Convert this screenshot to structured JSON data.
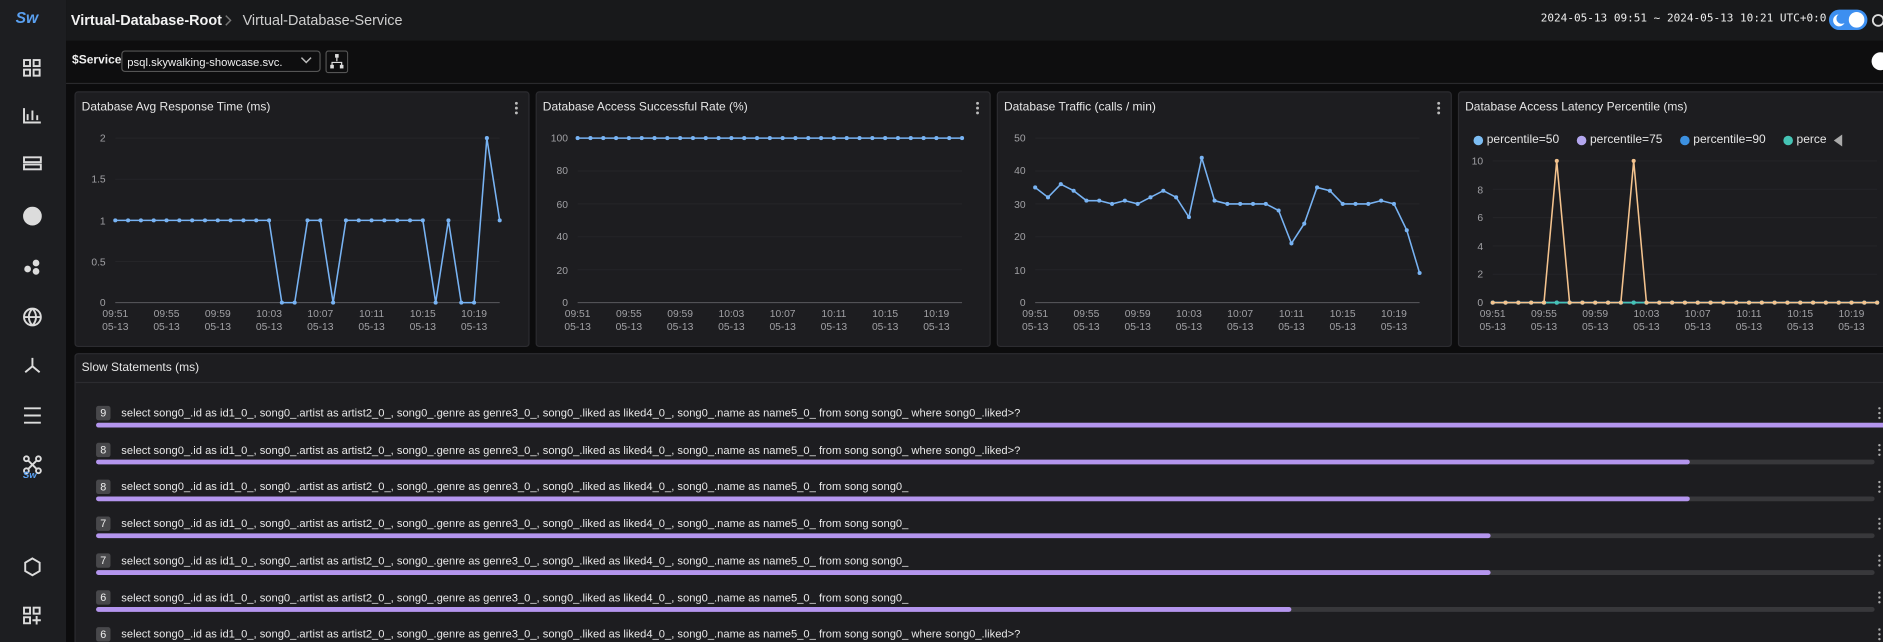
{
  "header": {
    "logo": "Sw",
    "breadcrumb": [
      "Virtual-Database-Root",
      "Virtual-Database-Service"
    ],
    "time_range": "2024-05-13 09:51 ~ 2024-05-13 10:21 UTC+0:0"
  },
  "toolbar": {
    "variable": "$Service",
    "selected": "psql.skywalking-showcase.svc."
  },
  "chart_data": [
    {
      "type": "line",
      "title": "Database Avg Response Time (ms)",
      "color": "#78b3f3",
      "grid": true,
      "categories": [
        "09:51\n05-13",
        null,
        null,
        null,
        "09:55\n05-13",
        null,
        null,
        null,
        "09:59\n05-13",
        null,
        null,
        null,
        "10:03\n05-13",
        null,
        null,
        null,
        "10:07\n05-13",
        null,
        null,
        null,
        "10:11\n05-13",
        null,
        null,
        null,
        "10:15\n05-13",
        null,
        null,
        null,
        "10:19\n05-13",
        null,
        null
      ],
      "values": [
        1,
        1,
        1,
        1,
        1,
        1,
        1,
        1,
        1,
        1,
        1,
        1,
        1,
        0,
        0,
        1,
        1,
        0,
        1,
        1,
        1,
        1,
        1,
        1,
        1,
        0,
        1,
        0,
        0,
        2,
        1
      ],
      "ylim": [
        0,
        2
      ],
      "yticks": [
        0,
        0.5,
        1,
        1.5,
        2
      ]
    },
    {
      "type": "line",
      "title": "Database Access Successful Rate (%)",
      "color": "#78b3f3",
      "grid": true,
      "categories": [
        "09:51\n05-13",
        null,
        null,
        null,
        "09:55\n05-13",
        null,
        null,
        null,
        "09:59\n05-13",
        null,
        null,
        null,
        "10:03\n05-13",
        null,
        null,
        null,
        "10:07\n05-13",
        null,
        null,
        null,
        "10:11\n05-13",
        null,
        null,
        null,
        "10:15\n05-13",
        null,
        null,
        null,
        "10:19\n05-13",
        null,
        null
      ],
      "values": [
        100,
        100,
        100,
        100,
        100,
        100,
        100,
        100,
        100,
        100,
        100,
        100,
        100,
        100,
        100,
        100,
        100,
        100,
        100,
        100,
        100,
        100,
        100,
        100,
        100,
        100,
        100,
        100,
        100,
        100,
        100
      ],
      "ylim": [
        0,
        100
      ],
      "yticks": [
        0,
        20,
        40,
        60,
        80,
        100
      ]
    },
    {
      "type": "line",
      "title": "Database Traffic (calls / min)",
      "color": "#78b3f3",
      "grid": true,
      "categories": [
        "09:51\n05-13",
        null,
        null,
        null,
        "09:55\n05-13",
        null,
        null,
        null,
        "09:59\n05-13",
        null,
        null,
        null,
        "10:03\n05-13",
        null,
        null,
        null,
        "10:07\n05-13",
        null,
        null,
        null,
        "10:11\n05-13",
        null,
        null,
        null,
        "10:15\n05-13",
        null,
        null,
        null,
        "10:19\n05-13",
        null,
        null
      ],
      "values": [
        35,
        32,
        36,
        34,
        31,
        31,
        30,
        31,
        30,
        32,
        34,
        32,
        26,
        44,
        31,
        30,
        30,
        30,
        30,
        28,
        18,
        24,
        35,
        34,
        30,
        30,
        30,
        31,
        30,
        22,
        9
      ],
      "ylim": [
        0,
        50
      ],
      "yticks": [
        0,
        10,
        20,
        30,
        40,
        50
      ]
    },
    {
      "type": "line",
      "title": "Database Access Latency Percentile (ms)",
      "grid": true,
      "categories": [
        "09:51\n05-13",
        null,
        null,
        null,
        "09:55\n05-13",
        null,
        null,
        null,
        "09:59\n05-13",
        null,
        null,
        null,
        "10:03\n05-13",
        null,
        null,
        null,
        "10:07\n05-13",
        null,
        null,
        null,
        "10:11\n05-13",
        null,
        null,
        null,
        "10:15\n05-13",
        null,
        null,
        null,
        "10:19\n05-13",
        null,
        null
      ],
      "series": [
        {
          "name": "percentile=50",
          "color": "#7cbdf3",
          "values": [
            0,
            0,
            0,
            0,
            0,
            0,
            0,
            0,
            0,
            0,
            0,
            0,
            0,
            0,
            0,
            0,
            0,
            0,
            0,
            0,
            0,
            0,
            0,
            0,
            0,
            0,
            0,
            0,
            0,
            0,
            0
          ]
        },
        {
          "name": "percentile=75",
          "color": "#b3a6ee",
          "values": [
            0,
            0,
            0,
            0,
            0,
            0,
            0,
            0,
            0,
            0,
            0,
            0,
            0,
            0,
            0,
            0,
            0,
            0,
            0,
            0,
            0,
            0,
            0,
            0,
            0,
            0,
            0,
            0,
            0,
            0,
            0
          ]
        },
        {
          "name": "percentile=90",
          "color": "#3c90e0",
          "values": [
            0,
            0,
            0,
            0,
            0,
            0,
            0,
            0,
            0,
            0,
            0,
            0,
            0,
            0,
            0,
            0,
            0,
            0,
            0,
            0,
            0,
            0,
            0,
            0,
            0,
            0,
            0,
            0,
            0,
            0,
            0
          ]
        },
        {
          "name": "perce",
          "color": "#45c3b4",
          "values": [
            0,
            0,
            0,
            0,
            0,
            0,
            0,
            0,
            0,
            0,
            0,
            0,
            0,
            0,
            0,
            0,
            0,
            0,
            0,
            0,
            0,
            0,
            0,
            0,
            0,
            0,
            0,
            0,
            0,
            0,
            0
          ]
        },
        {
          "color": "#f4c38e",
          "values": [
            0,
            0,
            0,
            0,
            0,
            10,
            0,
            0,
            0,
            0,
            0,
            10,
            0,
            0,
            0,
            0,
            0,
            0,
            0,
            0,
            0,
            0,
            0,
            0,
            0,
            0,
            0,
            0,
            0,
            0,
            0
          ]
        }
      ],
      "ylim": [
        0,
        10
      ],
      "yticks": [
        0,
        2,
        4,
        6,
        8,
        10
      ]
    }
  ],
  "slow_statements": {
    "title": "Slow Statements (ms)",
    "items": [
      {
        "value": 9,
        "statement": "select song0_.id as id1_0_, song0_.artist as artist2_0_, song0_.genre as genre3_0_, song0_.liked as liked4_0_, song0_.name as name5_0_ from song song0_ where song0_.liked>?"
      },
      {
        "value": 8,
        "statement": "select song0_.id as id1_0_, song0_.artist as artist2_0_, song0_.genre as genre3_0_, song0_.liked as liked4_0_, song0_.name as name5_0_ from song song0_ where song0_.liked>?"
      },
      {
        "value": 8,
        "statement": "select song0_.id as id1_0_, song0_.artist as artist2_0_, song0_.genre as genre3_0_, song0_.liked as liked4_0_, song0_.name as name5_0_ from song song0_"
      },
      {
        "value": 7,
        "statement": "select song0_.id as id1_0_, song0_.artist as artist2_0_, song0_.genre as genre3_0_, song0_.liked as liked4_0_, song0_.name as name5_0_ from song song0_"
      },
      {
        "value": 7,
        "statement": "select song0_.id as id1_0_, song0_.artist as artist2_0_, song0_.genre as genre3_0_, song0_.liked as liked4_0_, song0_.name as name5_0_ from song song0_"
      },
      {
        "value": 6,
        "statement": "select song0_.id as id1_0_, song0_.artist as artist2_0_, song0_.genre as genre3_0_, song0_.liked as liked4_0_, song0_.name as name5_0_ from song song0_"
      },
      {
        "value": 6,
        "statement": "select song0_.id as id1_0_, song0_.artist as artist2_0_, song0_.genre as genre3_0_, song0_.liked as liked4_0_, song0_.name as name5_0_ from song song0_ where song0_.liked>?"
      }
    ]
  }
}
